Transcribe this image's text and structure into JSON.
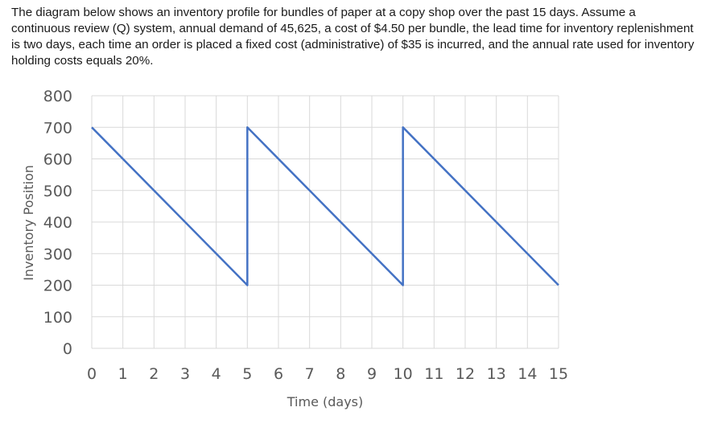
{
  "question_text": "The diagram below shows an inventory profile for bundles of paper at a copy shop over the past 15 days. Assume a continuous review (Q) system, annual demand of 45,625, a cost of $4.50 per bundle, the lead time for inventory replenishment is two days, each time an order is placed a fixed cost (administrative) of $35 is incurred, and the annual rate used for inventory holding costs equals 20%.",
  "chart_data": {
    "type": "line",
    "title": "",
    "xlabel": "Time (days)",
    "ylabel": "Inventory Position",
    "xlim": [
      0,
      15
    ],
    "ylim": [
      0,
      800
    ],
    "x_ticks": [
      0,
      1,
      2,
      3,
      4,
      5,
      6,
      7,
      8,
      9,
      10,
      11,
      12,
      13,
      14,
      15
    ],
    "y_ticks": [
      0,
      100,
      200,
      300,
      400,
      500,
      600,
      700,
      800
    ],
    "grid": true,
    "line_color": "#4472c4",
    "grid_color": "#d9d9d9",
    "series": [
      {
        "points": [
          {
            "x": 0,
            "y": 700
          },
          {
            "x": 5,
            "y": 200
          },
          {
            "x": 5,
            "y": 700
          },
          {
            "x": 10,
            "y": 200
          },
          {
            "x": 10,
            "y": 700
          },
          {
            "x": 15,
            "y": 200
          }
        ]
      }
    ]
  }
}
